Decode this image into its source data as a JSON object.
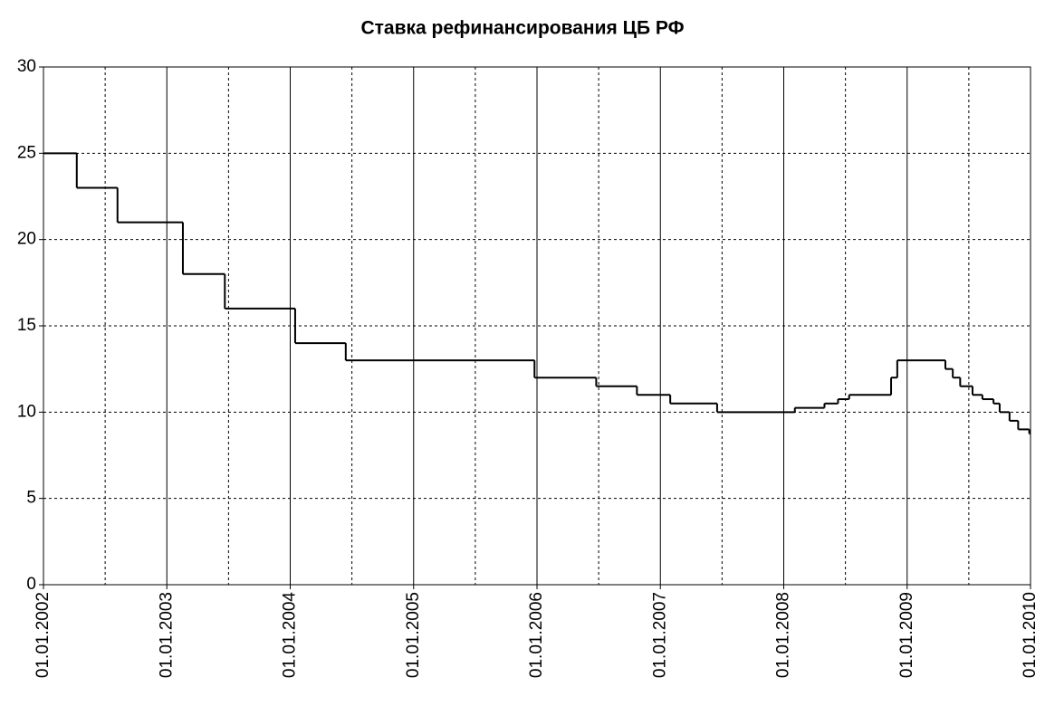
{
  "chart_data": {
    "type": "step",
    "title": "Ставка рефинансирования ЦБ РФ",
    "x": [
      2002.0,
      2002.27,
      2002.6,
      2003.13,
      2003.47,
      2004.04,
      2004.45,
      2005.98,
      2006.48,
      2006.81,
      2007.08,
      2007.46,
      2008.09,
      2008.33,
      2008.44,
      2008.53,
      2008.87,
      2008.92,
      2009.31,
      2009.37,
      2009.43,
      2009.53,
      2009.61,
      2009.7,
      2009.75,
      2009.83,
      2009.9,
      2009.99
    ],
    "values": [
      25,
      23,
      21,
      18,
      16,
      14,
      13,
      12,
      11.5,
      11,
      10.5,
      10,
      10.25,
      10.5,
      10.75,
      11,
      12,
      13,
      12.5,
      12,
      11.5,
      11,
      10.75,
      10.5,
      10,
      9.5,
      9,
      8.75
    ],
    "color": "#000000",
    "xlim": [
      2002,
      2010
    ],
    "xticks": [
      {
        "value": 2002,
        "label": "01.01.2002"
      },
      {
        "value": 2003,
        "label": "01.01.2003"
      },
      {
        "value": 2004,
        "label": "01.01.2004"
      },
      {
        "value": 2005,
        "label": "01.01.2005"
      },
      {
        "value": 2006,
        "label": "01.01.2006"
      },
      {
        "value": 2007,
        "label": "01.01.2007"
      },
      {
        "value": 2008,
        "label": "01.01.2008"
      },
      {
        "value": 2009,
        "label": "01.01.2009"
      },
      {
        "value": 2010,
        "label": "01.01.2010"
      }
    ],
    "xminor": [
      2002.5,
      2003.5,
      2004.5,
      2005.5,
      2006.5,
      2007.5,
      2008.5,
      2009.5
    ],
    "ylim": [
      0,
      30
    ],
    "yticks": [
      0,
      5,
      10,
      15,
      20,
      25,
      30
    ],
    "grid": true
  }
}
